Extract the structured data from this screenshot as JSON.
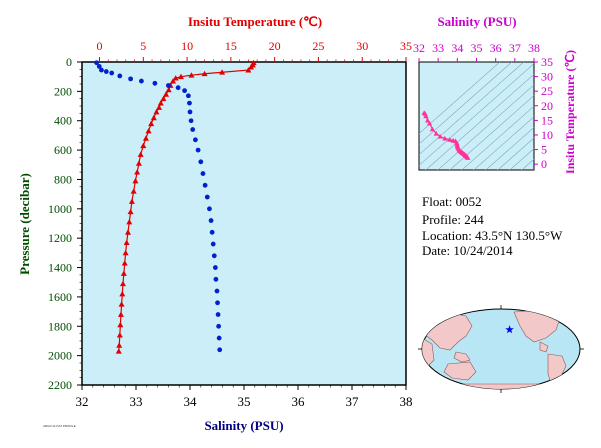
{
  "chart_data": [
    {
      "type": "scatter",
      "top_axis": {
        "label": "Insitu Temperature (℃)",
        "ticks": [
          "0",
          "5",
          "10",
          "15",
          "20",
          "25",
          "30",
          "35"
        ],
        "range": [
          -2,
          35
        ],
        "color": "#e00000"
      },
      "bottom_axis": {
        "label": "Salinity (PSU)",
        "ticks": [
          "32",
          "33",
          "34",
          "35",
          "36",
          "37",
          "38"
        ],
        "range": [
          32,
          38
        ],
        "color": "#000080"
      },
      "y_axis": {
        "label": "Pressure (decibar)",
        "ticks": [
          "0",
          "200",
          "400",
          "600",
          "800",
          "1000",
          "1200",
          "1400",
          "1600",
          "1800",
          "2000",
          "2200"
        ],
        "range": [
          0,
          2200
        ],
        "reversed": true,
        "color": "#004d00"
      },
      "grid": false,
      "background": "#cceef8",
      "series": [
        {
          "kind": "salinity",
          "color": "#0022cc",
          "marker": "circle",
          "points": [
            [
              32.27,
              5
            ],
            [
              32.32,
              30
            ],
            [
              32.36,
              55
            ],
            [
              32.45,
              65
            ],
            [
              32.55,
              75
            ],
            [
              32.7,
              95
            ],
            [
              32.9,
              115
            ],
            [
              33.1,
              130
            ],
            [
              33.35,
              145
            ],
            [
              33.6,
              160
            ],
            [
              33.78,
              175
            ],
            [
              33.9,
              195
            ],
            [
              33.97,
              230
            ],
            [
              33.99,
              280
            ],
            [
              34.0,
              340
            ],
            [
              34.02,
              400
            ],
            [
              34.05,
              460
            ],
            [
              34.1,
              530
            ],
            [
              34.15,
              600
            ],
            [
              34.2,
              680
            ],
            [
              34.24,
              760
            ],
            [
              34.28,
              840
            ],
            [
              34.32,
              920
            ],
            [
              34.36,
              1000
            ],
            [
              34.39,
              1080
            ],
            [
              34.41,
              1160
            ],
            [
              34.43,
              1240
            ],
            [
              34.45,
              1320
            ],
            [
              34.47,
              1400
            ],
            [
              34.48,
              1480
            ],
            [
              34.5,
              1560
            ],
            [
              34.51,
              1640
            ],
            [
              34.52,
              1720
            ],
            [
              34.53,
              1800
            ],
            [
              34.54,
              1880
            ],
            [
              34.55,
              1960
            ]
          ]
        },
        {
          "kind": "temperature",
          "color": "#e00000",
          "marker": "triangle",
          "points": [
            [
              17.6,
              5
            ],
            [
              17.5,
              20
            ],
            [
              17.3,
              35
            ],
            [
              17.0,
              55
            ],
            [
              14.0,
              70
            ],
            [
              12.0,
              80
            ],
            [
              10.5,
              90
            ],
            [
              9.3,
              100
            ],
            [
              8.7,
              110
            ],
            [
              8.4,
              130
            ],
            [
              8.1,
              160
            ],
            [
              7.9,
              190
            ],
            [
              7.6,
              220
            ],
            [
              7.3,
              250
            ],
            [
              7.0,
              280
            ],
            [
              6.8,
              310
            ],
            [
              6.5,
              340
            ],
            [
              6.2,
              380
            ],
            [
              5.9,
              420
            ],
            [
              5.6,
              470
            ],
            [
              5.3,
              520
            ],
            [
              5.0,
              570
            ],
            [
              4.7,
              630
            ],
            [
              4.5,
              690
            ],
            [
              4.3,
              750
            ],
            [
              4.1,
              810
            ],
            [
              3.9,
              880
            ],
            [
              3.7,
              950
            ],
            [
              3.55,
              1020
            ],
            [
              3.4,
              1090
            ],
            [
              3.25,
              1160
            ],
            [
              3.1,
              1230
            ],
            [
              2.98,
              1300
            ],
            [
              2.88,
              1370
            ],
            [
              2.78,
              1440
            ],
            [
              2.68,
              1510
            ],
            [
              2.6,
              1580
            ],
            [
              2.52,
              1650
            ],
            [
              2.45,
              1720
            ],
            [
              2.38,
              1790
            ],
            [
              2.32,
              1860
            ],
            [
              2.25,
              1930
            ],
            [
              2.2,
              1970
            ]
          ]
        }
      ]
    },
    {
      "type": "scatter",
      "x_axis": {
        "label": "Salinity (PSU)",
        "ticks": [
          "32",
          "33",
          "34",
          "35",
          "36",
          "37",
          "38"
        ],
        "range": [
          32,
          38
        ],
        "color": "#cc00cc"
      },
      "y_axis": {
        "label": "Insitu Temperature (℃)",
        "ticks": [
          "0",
          "5",
          "10",
          "15",
          "20",
          "25",
          "30",
          "35"
        ],
        "range": [
          -2,
          35
        ],
        "color": "#cc00cc"
      },
      "background": "#cceef8",
      "series": [
        {
          "kind": "t-s profile",
          "color": "#ff3399",
          "marker": "triangle",
          "points": [
            [
              32.27,
              17.6
            ],
            [
              32.32,
              17.3
            ],
            [
              32.36,
              16.5
            ],
            [
              32.45,
              15.0
            ],
            [
              32.55,
              14.0
            ],
            [
              32.7,
              12.0
            ],
            [
              32.9,
              10.5
            ],
            [
              33.1,
              9.5
            ],
            [
              33.35,
              8.8
            ],
            [
              33.6,
              8.4
            ],
            [
              33.78,
              8.1
            ],
            [
              33.9,
              7.9
            ],
            [
              33.97,
              7.3
            ],
            [
              33.99,
              6.8
            ],
            [
              34.0,
              6.3
            ],
            [
              34.02,
              5.8
            ],
            [
              34.05,
              5.3
            ],
            [
              34.1,
              4.8
            ],
            [
              34.15,
              4.5
            ],
            [
              34.2,
              4.2
            ],
            [
              34.24,
              4.0
            ],
            [
              34.28,
              3.8
            ],
            [
              34.32,
              3.6
            ],
            [
              34.36,
              3.4
            ],
            [
              34.4,
              3.2
            ],
            [
              34.43,
              3.0
            ],
            [
              34.46,
              2.8
            ],
            [
              34.49,
              2.6
            ],
            [
              34.52,
              2.4
            ],
            [
              34.55,
              2.2
            ]
          ]
        }
      ]
    }
  ],
  "info": {
    "float": "Float:  0052",
    "profile": "Profile:  244",
    "location": "Location:  43.5°N  130.5°W",
    "date": "Date:  10/24/2014"
  },
  "map": {
    "marker_lat": 43.5,
    "marker_lon": -130.5,
    "marker_color": "#0000ff"
  },
  "footer_text": "ARGO FLOAT PROFILE"
}
